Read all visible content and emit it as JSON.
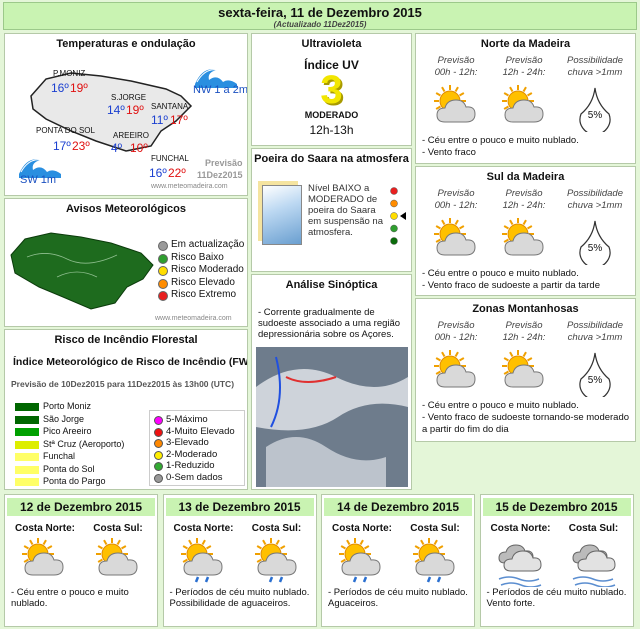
{
  "header": {
    "title": "sexta-feira, 11 de Dezembro 2015",
    "updated": "(Actualizado 11Dez2015)"
  },
  "temperatures": {
    "title": "Temperaturas e ondulação",
    "stations": [
      {
        "name": "P.MONIZ",
        "min": "16º",
        "max": "19º"
      },
      {
        "name": "S.JORGE",
        "min": "14º",
        "max": "19º"
      },
      {
        "name": "SANTANA",
        "min": "11º",
        "max": "17º"
      },
      {
        "name": "PONTA DO SOL",
        "min": "17º",
        "max": "23º"
      },
      {
        "name": "AREEIRO",
        "min": "4º",
        "max": "10º"
      },
      {
        "name": "FUNCHAL",
        "min": "16º",
        "max": "22º"
      }
    ],
    "waves": [
      "NW 1 a 2m",
      "SW 1m"
    ],
    "forecast": [
      "Previsão",
      "11Dez2015"
    ],
    "site": "www.meteomadeira.com"
  },
  "warnings": {
    "title": "Avisos Meteorológicos",
    "legend": [
      {
        "label": "Em actualização",
        "color": "#9a9a9a"
      },
      {
        "label": "Risco Baixo",
        "color": "#2f9e2f"
      },
      {
        "label": "Risco Moderado",
        "color": "#ffdd00"
      },
      {
        "label": "Risco Elevado",
        "color": "#ff8c00"
      },
      {
        "label": "Risco Extremo",
        "color": "#e82020"
      }
    ],
    "site": "www.meteomadeira.com"
  },
  "fire": {
    "title": "Risco de Incêndio Florestal",
    "heading": "Índice Meteorológico de Risco de Incêndio (FWI)",
    "forecast": "Previsão de 10Dez2015 para 11Dez2015 às 13h00 (UTC)",
    "locations": [
      {
        "name": "Porto Moniz",
        "color": "#006600"
      },
      {
        "name": "São Jorge",
        "color": "#006600"
      },
      {
        "name": "Pico Areeiro",
        "color": "#00a000"
      },
      {
        "name": "Stª Cruz (Aeroporto)",
        "color": "#ddee00"
      },
      {
        "name": "Funchal",
        "color": "#ffff66"
      },
      {
        "name": "Ponta do Sol",
        "color": "#ffff66"
      },
      {
        "name": "Ponta do Pargo",
        "color": "#ffff66"
      }
    ],
    "levels": [
      {
        "label": "5-Máximo",
        "color": "#ff00ff"
      },
      {
        "label": "4-Muito Elevado",
        "color": "#ee1111"
      },
      {
        "label": "3-Elevado",
        "color": "#ff8800"
      },
      {
        "label": "2-Moderado",
        "color": "#ffee00"
      },
      {
        "label": "1-Reduzido",
        "color": "#33aa33"
      },
      {
        "label": "0-Sem dados",
        "color": "#999999"
      }
    ]
  },
  "uv": {
    "title": "Ultravioleta",
    "label": "Índice UV",
    "index": "3",
    "level": "MODERADO",
    "time": "12h-13h"
  },
  "dust": {
    "title": "Poeira do Saara na atmosfera",
    "text": "Nível BAIXO a MODERADO de poeira do Saara em suspensão na atmosfera."
  },
  "synoptic": {
    "title": "Análise Sinóptica",
    "text": "- Corrente gradualmente de sudoeste associado a uma região depressionária sobre os Açores."
  },
  "regions": [
    {
      "title": "Norte da Madeira",
      "headers": [
        [
          "Previsão",
          "00h - 12h:"
        ],
        [
          "Previsão",
          "12h - 24h:"
        ],
        [
          "Possibilidade",
          "chuva >1mm"
        ]
      ],
      "chance": "5%",
      "notes": [
        "- Céu entre o pouco e muito nublado.",
        "- Vento fraco"
      ]
    },
    {
      "title": "Sul da Madeira",
      "headers": [
        [
          "Previsão",
          "00h - 12h:"
        ],
        [
          "Previsão",
          "12h - 24h:"
        ],
        [
          "Possibilidade",
          "chuva >1mm"
        ]
      ],
      "chance": "5%",
      "notes": [
        "- Céu entre o pouco e muito nublado.",
        "- Vento fraco de sudoeste a partir da tarde"
      ]
    },
    {
      "title": "Zonas Montanhosas",
      "headers": [
        [
          "Previsão",
          "00h - 12h:"
        ],
        [
          "Previsão",
          "12h - 24h:"
        ],
        [
          "Possibilidade",
          "chuva >1mm"
        ]
      ],
      "chance": "5%",
      "notes": [
        "- Céu entre o pouco e muito nublado.",
        "- Vento fraco de sudoeste tornando-se moderado a partir do fim do dia"
      ]
    }
  ],
  "days": [
    {
      "date": "12 de Dezembro 2015",
      "north": "Costa Norte:",
      "south": "Costa Sul:",
      "text": "- Céu entre o pouco e muito nublado."
    },
    {
      "date": "13 de Dezembro 2015",
      "north": "Costa Norte:",
      "south": "Costa Sul:",
      "text": "- Períodos de céu muito nublado. Possibilidade de aguaceiros."
    },
    {
      "date": "14 de Dezembro 2015",
      "north": "Costa Norte:",
      "south": "Costa Sul:",
      "text": "- Períodos de céu muito nublado. Aguaceiros."
    },
    {
      "date": "15 de Dezembro 2015",
      "north": "Costa Norte:",
      "south": "Costa Sul:",
      "text": "- Períodos de céu muito nublado. Vento forte."
    }
  ]
}
